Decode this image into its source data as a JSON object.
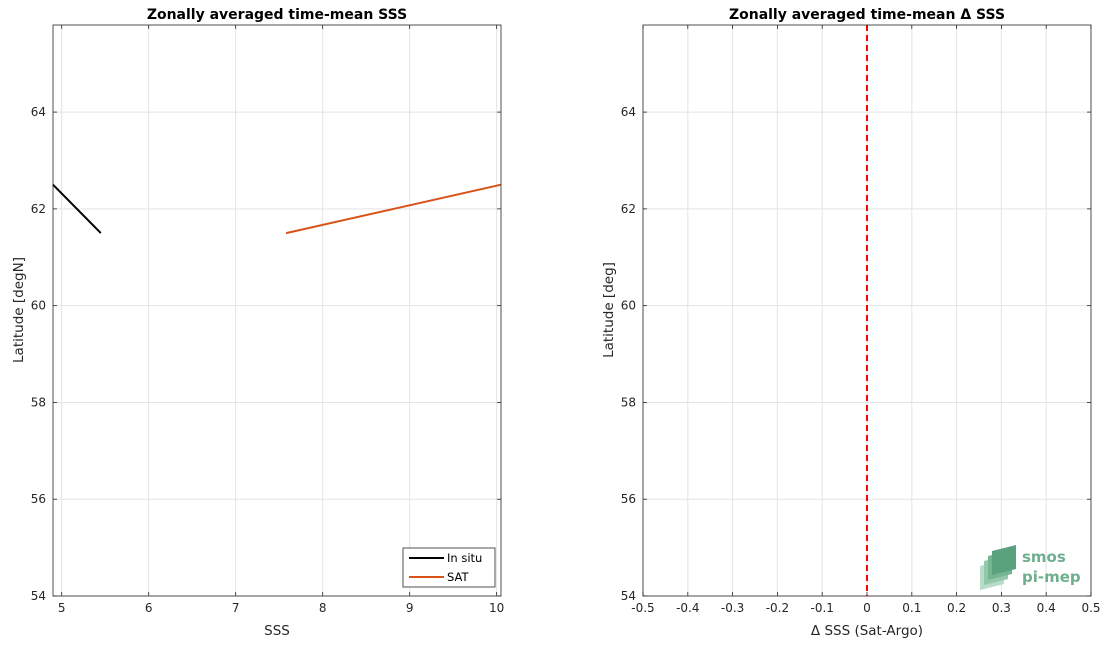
{
  "chart_data": [
    {
      "type": "line",
      "title": "Zonally averaged time-mean SSS",
      "xlabel": "SSS",
      "ylabel": "Latitude [degN]",
      "xlim": [
        4.9,
        10.05
      ],
      "ylim": [
        54,
        65.8
      ],
      "xticks": [
        5,
        6,
        7,
        8,
        9,
        10
      ],
      "yticks": [
        54,
        56,
        58,
        60,
        62,
        64
      ],
      "grid": true,
      "legend_position": "bottom-right",
      "series": [
        {
          "name": "In situ",
          "color": "#000000",
          "x": [
            4.9,
            5.45
          ],
          "y": [
            62.5,
            61.5
          ]
        },
        {
          "name": "SAT",
          "color": "#d95319",
          "x": [
            7.58,
            10.05
          ],
          "y": [
            61.5,
            62.5
          ]
        }
      ]
    },
    {
      "type": "line",
      "title": "Zonally averaged time-mean Δ SSS",
      "xlabel": "Δ SSS (Sat-Argo)",
      "ylabel": "Latitude [deg]",
      "xlim": [
        -0.5,
        0.5
      ],
      "ylim": [
        54,
        65.8
      ],
      "xticks": [
        -0.5,
        -0.4,
        -0.3,
        -0.2,
        -0.1,
        0,
        0.1,
        0.2,
        0.3,
        0.4,
        0.5
      ],
      "yticks": [
        54,
        56,
        58,
        60,
        62,
        64
      ],
      "grid": true,
      "reference_line": {
        "x": 0,
        "color": "#ff0000",
        "style": "dashed"
      }
    }
  ],
  "watermark": {
    "line1": "smos",
    "line2": "pi-mep",
    "color": "#6fae8e"
  }
}
